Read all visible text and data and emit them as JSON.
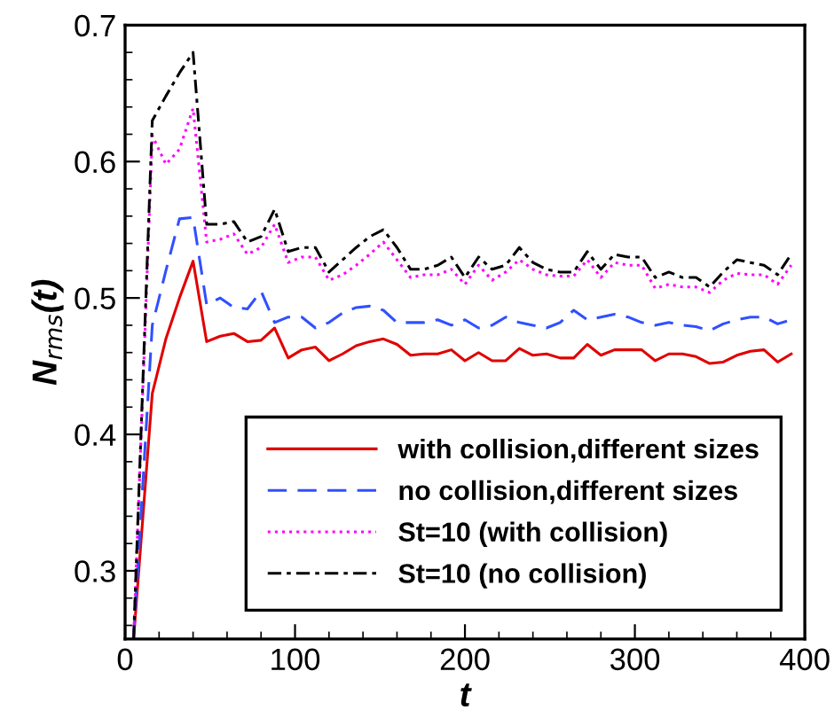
{
  "chart_data": {
    "type": "line",
    "xlabel": "t",
    "ylabel": "N$_{rms}$(t)",
    "x": [
      5,
      16,
      24,
      32,
      40,
      48,
      56,
      64,
      72,
      80,
      88,
      96,
      104,
      112,
      120,
      128,
      136,
      144,
      152,
      160,
      168,
      176,
      184,
      192,
      200,
      208,
      216,
      224,
      232,
      240,
      248,
      256,
      264,
      272,
      280,
      288,
      296,
      304,
      312,
      320,
      328,
      336,
      344,
      352,
      360,
      368,
      376,
      384,
      392
    ],
    "series": [
      {
        "name": "with collision,different sizes",
        "color": "#e00000",
        "line_style": "solid",
        "values": [
          0.25,
          0.43,
          0.47,
          0.5,
          0.527,
          0.468,
          0.472,
          0.474,
          0.468,
          0.469,
          0.478,
          0.456,
          0.462,
          0.464,
          0.454,
          0.459,
          0.465,
          0.468,
          0.47,
          0.466,
          0.458,
          0.459,
          0.459,
          0.462,
          0.454,
          0.46,
          0.454,
          0.454,
          0.463,
          0.458,
          0.459,
          0.456,
          0.456,
          0.466,
          0.458,
          0.462,
          0.462,
          0.462,
          0.454,
          0.459,
          0.459,
          0.457,
          0.452,
          0.453,
          0.458,
          0.461,
          0.462,
          0.453,
          0.459
        ]
      },
      {
        "name": "no collision,different sizes",
        "color": "#3050ff",
        "line_style": "dashed",
        "values": [
          0.25,
          0.48,
          0.52,
          0.558,
          0.559,
          0.495,
          0.5,
          0.493,
          0.492,
          0.505,
          0.482,
          0.486,
          0.486,
          0.478,
          0.482,
          0.489,
          0.493,
          0.494,
          0.491,
          0.482,
          0.482,
          0.482,
          0.484,
          0.48,
          0.484,
          0.478,
          0.48,
          0.486,
          0.482,
          0.48,
          0.478,
          0.482,
          0.491,
          0.484,
          0.486,
          0.488,
          0.486,
          0.482,
          0.48,
          0.482,
          0.48,
          0.479,
          0.476,
          0.481,
          0.484,
          0.486,
          0.486,
          0.481,
          0.484
        ]
      },
      {
        "name": "St=10 (with collision)",
        "color": "#ff00ff",
        "line_style": "dotted",
        "values": [
          0.25,
          0.619,
          0.598,
          0.609,
          0.639,
          0.541,
          0.543,
          0.547,
          0.532,
          0.537,
          0.554,
          0.526,
          0.53,
          0.53,
          0.513,
          0.517,
          0.524,
          0.532,
          0.541,
          0.528,
          0.515,
          0.517,
          0.517,
          0.521,
          0.51,
          0.524,
          0.513,
          0.519,
          0.528,
          0.521,
          0.517,
          0.516,
          0.516,
          0.528,
          0.515,
          0.526,
          0.524,
          0.524,
          0.507,
          0.51,
          0.508,
          0.508,
          0.504,
          0.513,
          0.518,
          0.517,
          0.517,
          0.51,
          0.524
        ]
      },
      {
        "name": "St=10 (no collision)",
        "color": "#000000",
        "line_style": "dashdot",
        "values": [
          0.25,
          0.63,
          0.648,
          0.665,
          0.68,
          0.554,
          0.554,
          0.556,
          0.541,
          0.545,
          0.565,
          0.534,
          0.537,
          0.537,
          0.519,
          0.528,
          0.537,
          0.545,
          0.55,
          0.537,
          0.521,
          0.521,
          0.524,
          0.53,
          0.515,
          0.53,
          0.521,
          0.524,
          0.537,
          0.526,
          0.521,
          0.519,
          0.519,
          0.534,
          0.521,
          0.532,
          0.53,
          0.53,
          0.515,
          0.519,
          0.515,
          0.515,
          0.508,
          0.519,
          0.528,
          0.526,
          0.524,
          0.517,
          0.532
        ]
      }
    ],
    "xlim": [
      0,
      400
    ],
    "ylim": [
      0.25,
      0.7
    ],
    "xticks": [
      0,
      {
        "value": 20,
        "label": null
      },
      {
        "value": 40,
        "label": null
      },
      {
        "value": 60,
        "label": null
      },
      {
        "value": 80,
        "label": null
      },
      100,
      {
        "value": 120,
        "label": null
      },
      {
        "value": 140,
        "label": null
      },
      {
        "value": 160,
        "label": null
      },
      {
        "value": 180,
        "label": null
      },
      200,
      {
        "value": 220,
        "label": null
      },
      {
        "value": 240,
        "label": null
      },
      {
        "value": 260,
        "label": null
      },
      {
        "value": 280,
        "label": null
      },
      300,
      {
        "value": 320,
        "label": null
      },
      {
        "value": 340,
        "label": null
      },
      {
        "value": 360,
        "label": null
      },
      {
        "value": 380,
        "label": null
      },
      400
    ],
    "yticks": [
      {
        "value": 0.26,
        "label": null
      },
      {
        "value": 0.28,
        "label": null
      },
      0.3,
      {
        "value": 0.32,
        "label": null
      },
      {
        "value": 0.34,
        "label": null
      },
      {
        "value": 0.36,
        "label": null
      },
      {
        "value": 0.38,
        "label": null
      },
      0.4,
      {
        "value": 0.42,
        "label": null
      },
      {
        "value": 0.44,
        "label": null
      },
      {
        "value": 0.46,
        "label": null
      },
      {
        "value": 0.48,
        "label": null
      },
      0.5,
      {
        "value": 0.52,
        "label": null
      },
      {
        "value": 0.54,
        "label": null
      },
      {
        "value": 0.56,
        "label": null
      },
      {
        "value": 0.58,
        "label": null
      },
      0.6,
      {
        "value": 0.62,
        "label": null
      },
      {
        "value": 0.64,
        "label": null
      },
      {
        "value": 0.66,
        "label": null
      },
      {
        "value": 0.68,
        "label": null
      },
      0.7
    ],
    "grid": false,
    "legend": "bottom right"
  }
}
